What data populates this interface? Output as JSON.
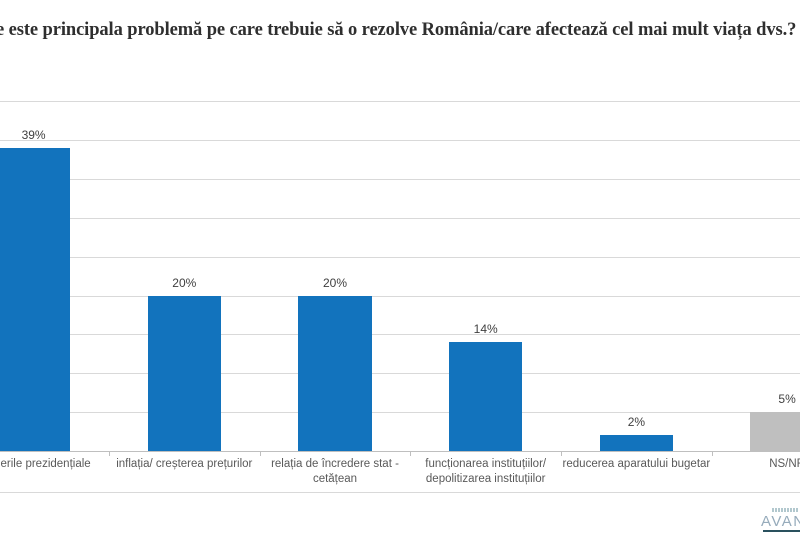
{
  "title": {
    "text": "e este principala problemă pe care trebuie să o rezolve România/care afectează cel mai mult viața dvs.?"
  },
  "chart_data": {
    "type": "bar",
    "title": "e este principala problemă pe care trebuie să o rezolve România/care afectează cel mai mult viața dvs.?",
    "categories": [
      [
        "erile  prezidențiale"
      ],
      [
        "inflația/ creșterea prețurilor"
      ],
      [
        "relația de încredere stat -",
        "cetățean"
      ],
      [
        "funcționarea instituțiilor/",
        "depolitizarea instituțiilor"
      ],
      [
        "reducerea aparatului bugetar"
      ],
      [
        "NS/NR"
      ]
    ],
    "values": [
      39,
      20,
      20,
      14,
      2,
      5
    ],
    "value_labels": [
      "39%",
      "20%",
      "20%",
      "14%",
      "2%",
      "5%"
    ],
    "bar_colors": [
      "#1273bd",
      "#1273bd",
      "#1273bd",
      "#1273bd",
      "#1273bd",
      "#bfbfbf"
    ],
    "xlabel": "",
    "ylabel": "",
    "ylim": [
      0,
      45
    ],
    "grid": true,
    "grid_step": 5,
    "y_tick_labels_visible": false,
    "legend": false,
    "layout_note": "first bar and last bar are clipped by the left/right image edges"
  },
  "colors": {
    "bar_blue": "#1273bd",
    "bar_gray": "#bfbfbf",
    "gridline": "#d9d9d9",
    "axis": "#bfbfbf"
  },
  "footer": {
    "logo_text": "AVAN"
  }
}
